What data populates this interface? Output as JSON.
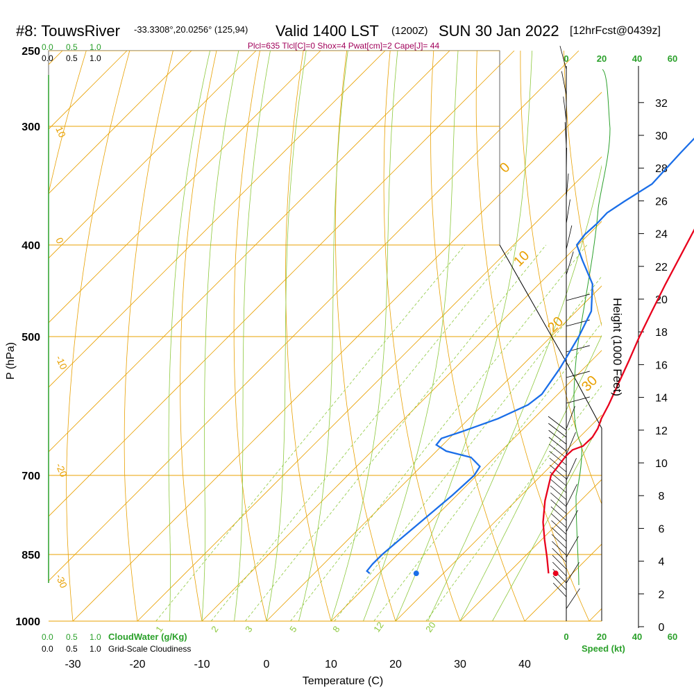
{
  "header": {
    "station": "#8: TouwsRiver",
    "coords": "-33.3308°,20.0256° (125,94)",
    "valid": "Valid 1400 LST",
    "zulu": "(1200Z)",
    "date": "SUN 30 Jan 2022",
    "fcst": "[12hrFcst@0439z]"
  },
  "params_line": "Plcl=635 Tlcl[C]=0 Shox=4 Pwat[cm]=2 Cape[J]= 44",
  "left_scale_top_green": [
    "0.0",
    "0.5",
    "1.0"
  ],
  "left_scale_top_black": [
    "0.0",
    "0.5",
    "1.0"
  ],
  "left_scale_bottom_green": [
    "0.0",
    "0.5",
    "1.0",
    "CloudWater (g/Kg)"
  ],
  "left_scale_bottom_black": [
    "0.0",
    "0.5",
    "1.0",
    "Grid-Scale Cloudiness"
  ],
  "speed_scale": {
    "top": [
      "0",
      "20",
      "40",
      "60"
    ],
    "bottom": [
      "0",
      "20",
      "40",
      "60"
    ],
    "label": "Speed (kt)"
  },
  "dry_adiabat_labels": [
    "10",
    "0",
    "-10",
    "-20",
    "-30"
  ],
  "theta_labels": [
    "0",
    "10",
    "20",
    "30"
  ],
  "mixing_labels": [
    "1",
    "2",
    "3",
    "5",
    "8",
    "12",
    "20"
  ],
  "chart_data": {
    "type": "line",
    "title": "",
    "xlabel": "Temperature (C)",
    "ylabel": "P (hPa)",
    "y2label": "Height (1000 Feet)",
    "x_ticks": [
      "-30",
      "-20",
      "-10",
      "0",
      "10",
      "20",
      "30",
      "40"
    ],
    "p_ticks": [
      "250",
      "300",
      "400",
      "500",
      "700",
      "850",
      "1000"
    ],
    "height_ticks": [
      "0",
      "2",
      "4",
      "6",
      "8",
      "10",
      "12",
      "14",
      "16",
      "18",
      "20",
      "22",
      "24",
      "26",
      "28",
      "30",
      "32"
    ],
    "xlim": [
      -34,
      46
    ],
    "ylim": [
      1000,
      250
    ],
    "y_scale": "log",
    "series": [
      {
        "key": "temperature",
        "color": "#e8001c",
        "points": [
          [
            36.3,
            890
          ],
          [
            33.5,
            855
          ],
          [
            30.5,
            820
          ],
          [
            27.5,
            785
          ],
          [
            24.5,
            745
          ],
          [
            21.5,
            700
          ],
          [
            20.8,
            668
          ],
          [
            20.9,
            658
          ],
          [
            21.9,
            652
          ],
          [
            22.0,
            638
          ],
          [
            21.5,
            625
          ],
          [
            20.5,
            610
          ],
          [
            19.5,
            590
          ],
          [
            18.0,
            565
          ],
          [
            15.8,
            530
          ],
          [
            13.7,
            500
          ],
          [
            11.7,
            470
          ],
          [
            9.6,
            440
          ],
          [
            7.5,
            410
          ],
          [
            5.6,
            385
          ],
          [
            3.5,
            360
          ],
          [
            1.3,
            335
          ],
          [
            -1.0,
            310
          ],
          [
            -3.2,
            290
          ],
          [
            -5.3,
            270
          ],
          [
            -7.5,
            258
          ]
        ]
      },
      {
        "key": "dewpoint",
        "color": "#1a6ee8",
        "points": [
          [
            8.6,
            890
          ],
          [
            7.8,
            885
          ],
          [
            7.6,
            870
          ],
          [
            7.6,
            850
          ],
          [
            8.0,
            820
          ],
          [
            8.6,
            780
          ],
          [
            9.3,
            735
          ],
          [
            9.6,
            700
          ],
          [
            9.1,
            685
          ],
          [
            6.3,
            670
          ],
          [
            1.5,
            660
          ],
          [
            -1.0,
            650
          ],
          [
            -1.2,
            640
          ],
          [
            0.8,
            630
          ],
          [
            4.5,
            610
          ],
          [
            7.0,
            590
          ],
          [
            7.5,
            575
          ],
          [
            6.3,
            540
          ],
          [
            4.3,
            500
          ],
          [
            2.3,
            470
          ],
          [
            -1.7,
            440
          ],
          [
            -7.0,
            415
          ],
          [
            -10.2,
            400
          ],
          [
            -10.6,
            390
          ],
          [
            -10.4,
            380
          ],
          [
            -10.5,
            370
          ],
          [
            -9.6,
            360
          ],
          [
            -8.0,
            345
          ],
          [
            -8.4,
            320
          ],
          [
            -8.6,
            300
          ],
          [
            -8.6,
            290
          ],
          [
            -8.2,
            280
          ],
          [
            -7.0,
            265
          ],
          [
            -6.7,
            258
          ]
        ]
      },
      {
        "key": "parcel",
        "color": "#7a004a",
        "points": [
          [
            5.5,
            380
          ],
          [
            2.5,
            340
          ],
          [
            -0.5,
            310
          ],
          [
            -3.0,
            290
          ],
          [
            -5.3,
            270
          ],
          [
            -7.5,
            258
          ]
        ]
      }
    ],
    "surface_temp_point": [
      37.4,
      890
    ],
    "surface_dew_point": [
      15.8,
      890
    ],
    "moist_adiabats_c": [
      -15,
      -10,
      -5,
      0,
      5,
      10,
      15,
      20,
      25,
      30,
      35
    ]
  }
}
